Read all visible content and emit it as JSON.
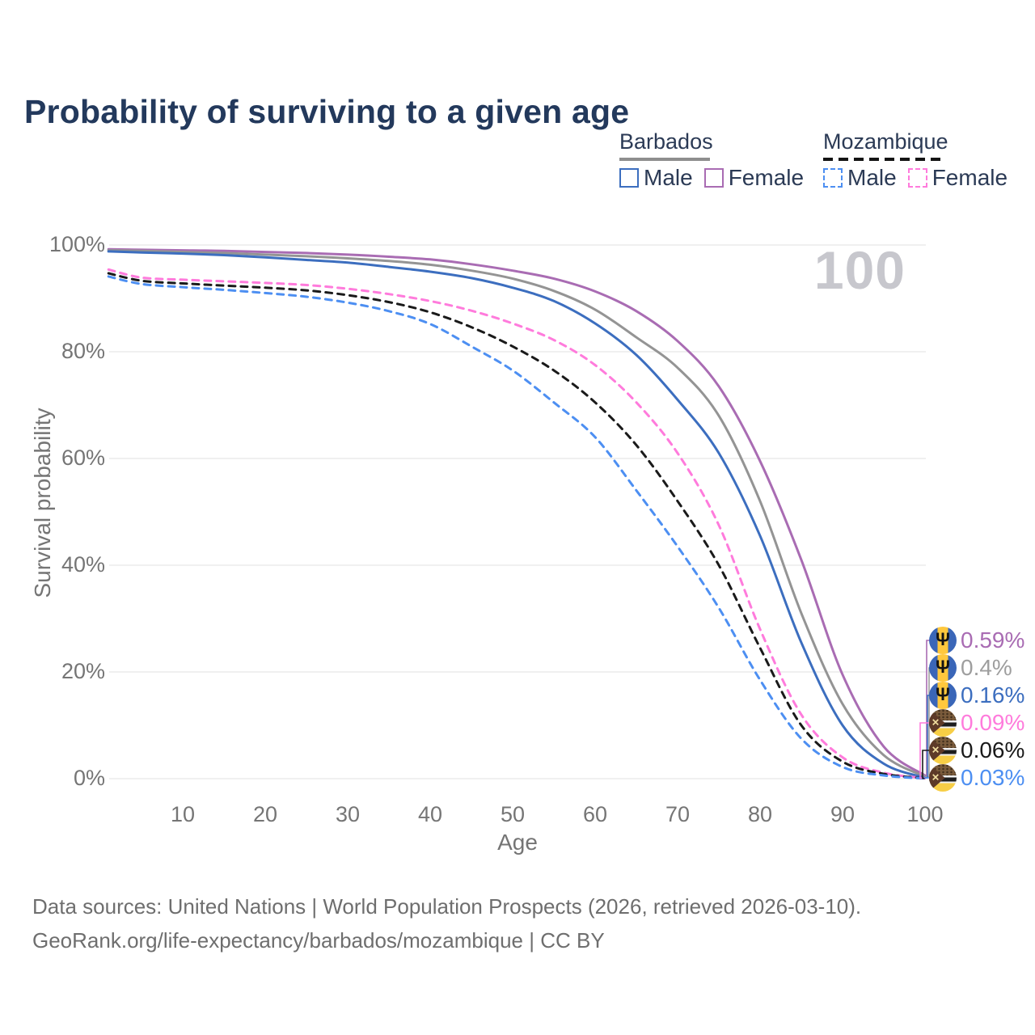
{
  "header": {
    "title": "Probability of surviving to a given age"
  },
  "legend": {
    "groups": [
      {
        "label": "Barbados",
        "underline": {
          "style": "solid",
          "color": "#8E8E8E"
        },
        "items": [
          {
            "label": "Male",
            "color": "#3C6EBF",
            "dashed": false
          },
          {
            "label": "Female",
            "color": "#A96CB3",
            "dashed": false
          }
        ]
      },
      {
        "label": "Mozambique",
        "underline": {
          "style": "dashed",
          "color": "#141414"
        },
        "items": [
          {
            "label": "Male",
            "color": "#4D8FF2",
            "dashed": true
          },
          {
            "label": "Female",
            "color": "#FF7BDC",
            "dashed": true
          }
        ]
      }
    ]
  },
  "watermark": {
    "text": "100"
  },
  "chart_data": {
    "type": "line",
    "title": "Probability of surviving to a given age",
    "xlabel": "Age",
    "ylabel": "Survival probability",
    "xlim": [
      1,
      100
    ],
    "ylim": [
      0,
      100
    ],
    "grid": "horizontal",
    "x_ticks": [
      10,
      20,
      30,
      40,
      50,
      60,
      70,
      80,
      90,
      100
    ],
    "y_ticks": [
      {
        "value": 0,
        "label": "0%"
      },
      {
        "value": 20,
        "label": "20%"
      },
      {
        "value": 40,
        "label": "40%"
      },
      {
        "value": 60,
        "label": "60%"
      },
      {
        "value": 80,
        "label": "80%"
      },
      {
        "value": 100,
        "label": "100%"
      }
    ],
    "ages": [
      1,
      5,
      10,
      15,
      20,
      25,
      30,
      35,
      40,
      45,
      50,
      55,
      60,
      65,
      70,
      75,
      80,
      85,
      90,
      95,
      100
    ],
    "series": [
      {
        "name": "Barbados Female",
        "country": "Barbados",
        "sex": "Female",
        "color": "#A96CB3",
        "dashed": false,
        "values": [
          99.2,
          99.1,
          99.0,
          98.9,
          98.7,
          98.5,
          98.2,
          97.8,
          97.3,
          96.4,
          95.2,
          93.7,
          91.3,
          87.6,
          82.0,
          73.5,
          59.5,
          41.0,
          19.5,
          6.0,
          0.59
        ]
      },
      {
        "name": "Barbados (both sexes)",
        "country": "Barbados",
        "sex": "Both",
        "color": "#949494",
        "dashed": false,
        "values": [
          99.0,
          98.9,
          98.7,
          98.5,
          98.2,
          97.9,
          97.5,
          97.0,
          96.3,
          95.2,
          93.7,
          91.4,
          87.9,
          82.7,
          77.0,
          68.0,
          52.0,
          31.0,
          14.0,
          4.4,
          0.4
        ]
      },
      {
        "name": "Barbados Male",
        "country": "Barbados",
        "sex": "Male",
        "color": "#3C6EBF",
        "dashed": false,
        "values": [
          98.8,
          98.6,
          98.4,
          98.1,
          97.7,
          97.2,
          96.7,
          95.9,
          95.0,
          93.8,
          92.0,
          89.5,
          85.3,
          79.4,
          71.0,
          61.0,
          45.5,
          25.5,
          10.0,
          2.8,
          0.16
        ]
      },
      {
        "name": "Mozambique Female",
        "country": "Mozambique",
        "sex": "Female",
        "color": "#FF7BDC",
        "dashed": true,
        "values": [
          95.4,
          93.9,
          93.5,
          93.2,
          92.9,
          92.5,
          91.8,
          90.8,
          89.5,
          87.7,
          85.3,
          82.2,
          77.5,
          70.5,
          61.0,
          47.5,
          28.0,
          12.0,
          4.0,
          1.1,
          0.09
        ]
      },
      {
        "name": "Mozambique (both sexes)",
        "country": "Mozambique",
        "sex": "Both",
        "color": "#1A1A1A",
        "dashed": true,
        "values": [
          94.7,
          93.3,
          92.8,
          92.4,
          92.0,
          91.5,
          90.6,
          89.3,
          87.4,
          84.6,
          81.0,
          76.5,
          70.5,
          62.5,
          52.0,
          40.0,
          24.5,
          10.0,
          3.2,
          0.9,
          0.06
        ]
      },
      {
        "name": "Mozambique Male",
        "country": "Mozambique",
        "sex": "Male",
        "color": "#4D8FF2",
        "dashed": true,
        "values": [
          94.1,
          92.7,
          92.1,
          91.6,
          91.0,
          90.3,
          89.2,
          87.6,
          85.2,
          81.0,
          76.5,
          70.5,
          64.0,
          54.0,
          43.5,
          32.0,
          18.5,
          7.5,
          2.2,
          0.6,
          0.03
        ]
      }
    ],
    "end_labels": [
      {
        "flag": "barbados",
        "value": "0.59%",
        "color": "#A96CB3"
      },
      {
        "flag": "barbados",
        "value": "0.4%",
        "color": "#9E9E9E"
      },
      {
        "flag": "barbados",
        "value": "0.16%",
        "color": "#3C6EBF"
      },
      {
        "flag": "mozambique",
        "value": "0.09%",
        "color": "#FF7BDC"
      },
      {
        "flag": "mozambique",
        "value": "0.06%",
        "color": "#1A1A1A"
      },
      {
        "flag": "mozambique",
        "value": "0.03%",
        "color": "#4D8FF2"
      }
    ]
  },
  "footer": {
    "line1": "Data sources: United Nations | World Population Prospects (2026, retrieved 2026-03-10).",
    "line2": "GeoRank.org/life-expectancy/barbados/mozambique | CC BY"
  }
}
